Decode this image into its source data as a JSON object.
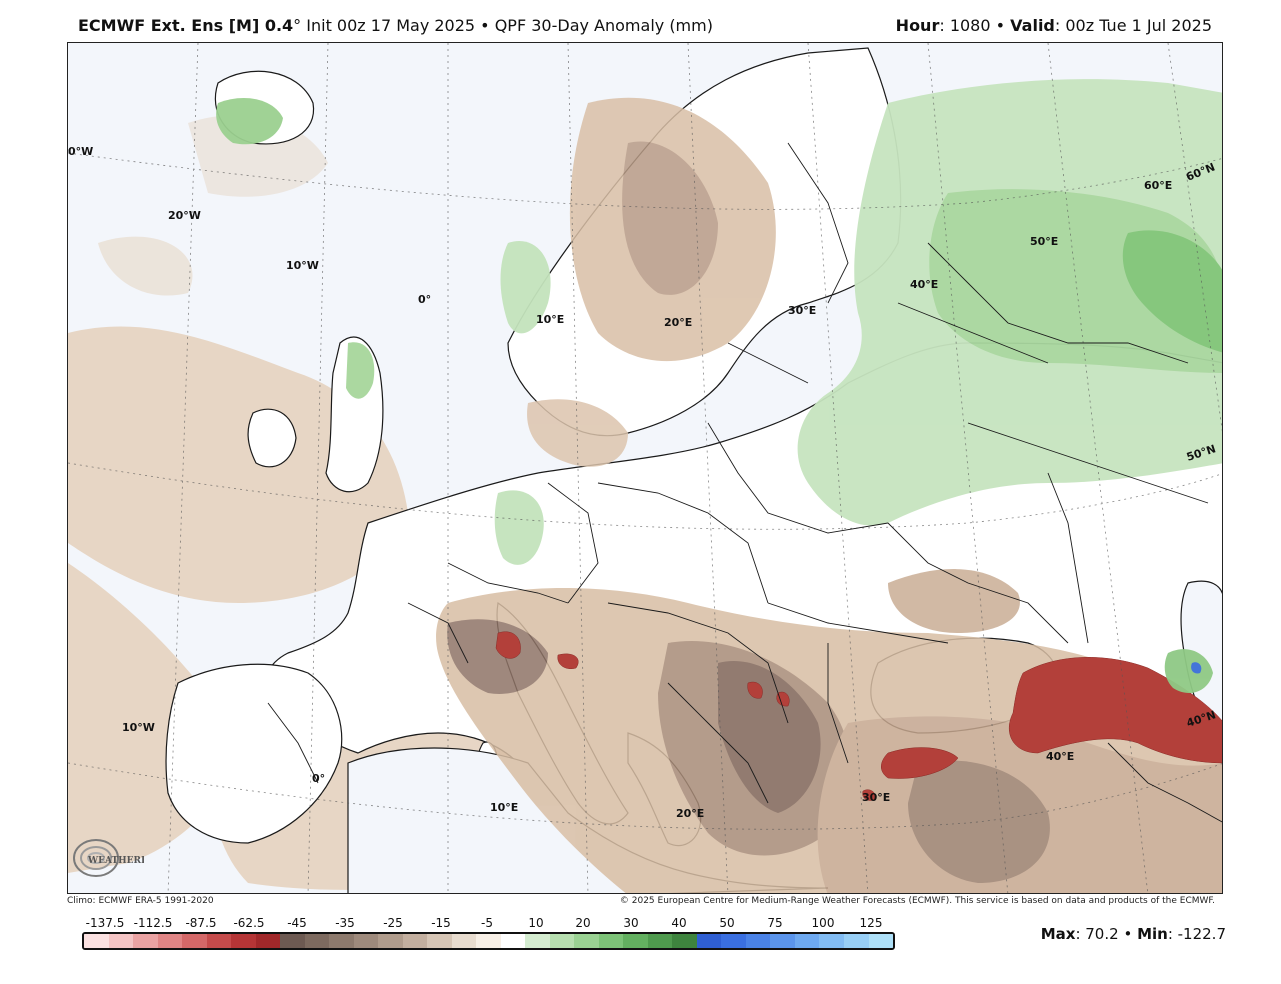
{
  "header": {
    "title_model": "ECMWF Ext. Ens [M] 0.4",
    "title_degree": "°",
    "init_text": " Init 00z 17 May 2025",
    "bullet": " • ",
    "product": "QPF 30-Day Anomaly (mm)",
    "hour_label": "Hour",
    "hour_value": ": 1080",
    "valid_label": "Valid",
    "valid_value": ": 00z Tue 1 Jul 2025"
  },
  "map": {
    "lon_labels": [
      "0°W",
      "20°W",
      "10°W",
      "0°",
      "10°E",
      "20°E",
      "30°E",
      "40°E",
      "50°E",
      "60°E",
      "10°W",
      "0°",
      "10°E",
      "20°E",
      "30°E",
      "40°E"
    ],
    "lat_labels": [
      "60°N",
      "50°N",
      "40°N"
    ],
    "colors": {
      "ocean": "#f7f9fc",
      "land": "#ffffff",
      "coast": "#1a1a1a",
      "dry_light": "#e8d6c3",
      "dry_mid": "#c9ab92",
      "dry_dark": "#8c7163",
      "dry_deep": "#5f4a42",
      "very_dry": "#b03a36",
      "wet_light": "#c8e6c2",
      "wet_mid": "#9fd394",
      "wet_dark": "#6fbd67",
      "very_wet": "#3a6fd8"
    }
  },
  "footer": {
    "climo": "Climo: ECMWF ERA-5 1991-2020",
    "copyright": "© 2025 European Centre for Medium-Range Weather Forecasts (ECMWF). This service is based on data and products of the ECMWF."
  },
  "logo": {
    "text": "WEATHERBELL"
  },
  "colorbar": {
    "labels": [
      "-137.5",
      "-112.5",
      "-87.5",
      "-62.5",
      "-45",
      "-35",
      "-25",
      "-15",
      "-5",
      "10",
      "20",
      "30",
      "40",
      "50",
      "75",
      "100",
      "125"
    ],
    "colors": [
      "#fbe1e1",
      "#f4c4c4",
      "#eba3a3",
      "#e08585",
      "#d46868",
      "#c54b4b",
      "#b53536",
      "#a1282a",
      "#6d5a52",
      "#7d6a5f",
      "#8d7a6d",
      "#9e8a7c",
      "#b09c8c",
      "#c3af9f",
      "#d6c5b5",
      "#e8dccf",
      "#f7efe6",
      "#ffffff",
      "#d4ecd0",
      "#b7dfb0",
      "#9ad293",
      "#7dc378",
      "#63b060",
      "#4f9a4e",
      "#3e843e",
      "#2f5fd3",
      "#3a6fe0",
      "#4a82e6",
      "#5b95ec",
      "#6ea9f0",
      "#82bcf3",
      "#98cff6",
      "#aee0f8"
    ]
  },
  "stats": {
    "max_label": "Max",
    "max_value": ": 70.2",
    "sep": " • ",
    "min_label": "Min",
    "min_value": ": -122.7"
  }
}
